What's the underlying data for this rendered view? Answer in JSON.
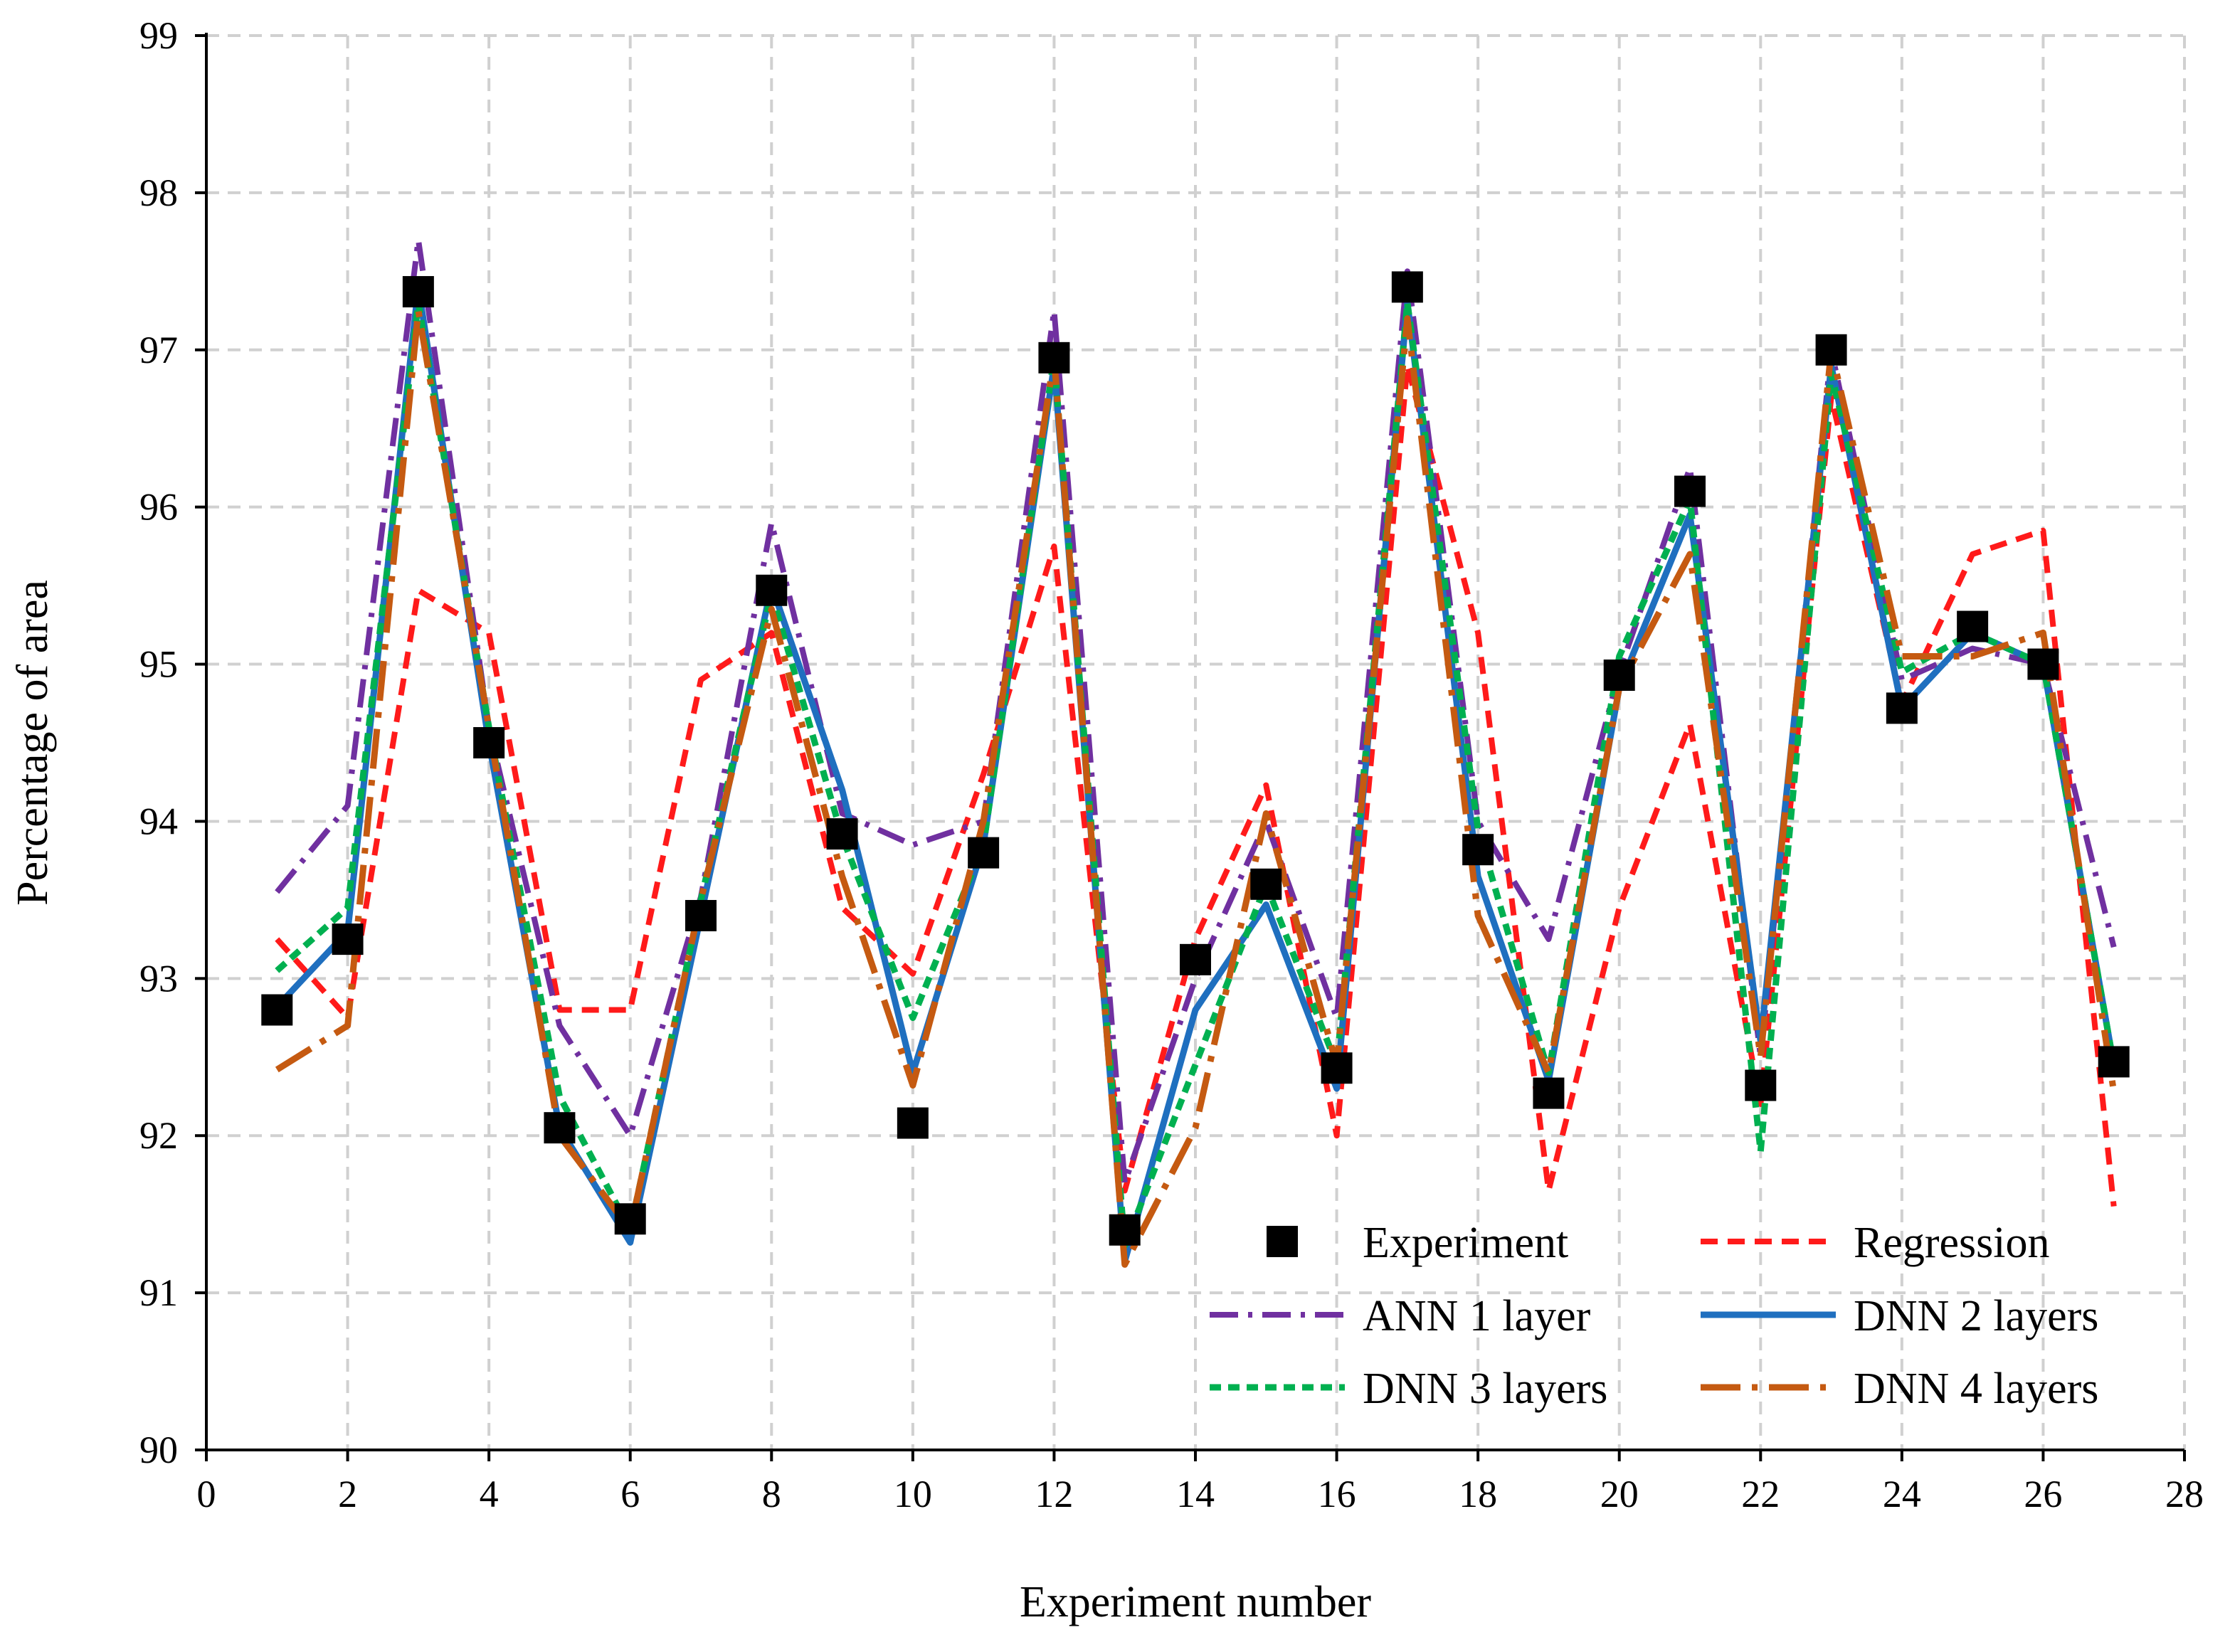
{
  "chart_data": {
    "type": "line",
    "title": "",
    "xlabel": "Experiment number",
    "ylabel": "Percentage of area",
    "xlim": [
      0,
      28
    ],
    "ylim": [
      90,
      99
    ],
    "xticks": [
      "0",
      "2",
      "4",
      "6",
      "8",
      "10",
      "12",
      "14",
      "16",
      "18",
      "20",
      "22",
      "24",
      "26",
      "28"
    ],
    "yticks": [
      "90",
      "91",
      "92",
      "93",
      "94",
      "95",
      "96",
      "97",
      "98",
      "99"
    ],
    "grid": true,
    "legend_position": "bottom-right",
    "x": [
      1,
      2,
      3,
      4,
      5,
      6,
      7,
      8,
      9,
      10,
      11,
      12,
      13,
      14,
      15,
      16,
      17,
      18,
      19,
      20,
      21,
      22,
      23,
      24,
      25,
      26,
      27
    ],
    "series": [
      {
        "name": "Experiment",
        "style": "marker-square",
        "color": "#000000",
        "values": [
          92.8,
          93.25,
          97.37,
          94.5,
          92.05,
          91.47,
          93.4,
          95.47,
          93.92,
          92.08,
          93.8,
          96.95,
          91.4,
          93.12,
          93.6,
          92.43,
          97.4,
          93.82,
          92.27,
          94.93,
          96.1,
          92.32,
          97.0,
          94.72,
          95.24,
          95.0,
          92.47
        ]
      },
      {
        "name": "Regression",
        "style": "dashed",
        "color": "#ff1a1a",
        "values": [
          93.25,
          92.75,
          95.47,
          95.2,
          92.8,
          92.8,
          94.9,
          95.2,
          93.45,
          93.03,
          94.3,
          95.75,
          91.65,
          93.25,
          94.23,
          92.0,
          96.9,
          95.2,
          91.65,
          93.45,
          94.62,
          92.2,
          96.7,
          94.75,
          95.7,
          95.85,
          91.55
        ]
      },
      {
        "name": "ANN 1 layer",
        "style": "dash-dot",
        "color": "#7030a0",
        "values": [
          93.55,
          94.1,
          97.7,
          94.6,
          92.7,
          92.0,
          93.52,
          95.9,
          94.05,
          93.85,
          94.0,
          97.25,
          91.7,
          93.0,
          94.0,
          92.75,
          97.5,
          94.0,
          93.25,
          94.95,
          96.25,
          92.5,
          97.0,
          94.9,
          95.1,
          95.0,
          93.2
        ]
      },
      {
        "name": "DNN 2 layers",
        "style": "solid",
        "color": "#1f6fbf",
        "values": [
          92.82,
          93.3,
          97.4,
          94.5,
          92.05,
          91.32,
          93.4,
          95.5,
          94.2,
          92.4,
          93.85,
          96.9,
          91.2,
          92.8,
          93.47,
          92.3,
          97.3,
          93.65,
          92.35,
          94.85,
          95.95,
          92.6,
          96.9,
          94.72,
          95.2,
          95.0,
          92.45
        ]
      },
      {
        "name": "DNN 3 layers",
        "style": "dashed-short",
        "color": "#00b050",
        "values": [
          93.05,
          93.45,
          97.3,
          94.6,
          92.25,
          91.4,
          93.5,
          95.45,
          93.9,
          92.75,
          93.85,
          96.95,
          91.3,
          92.45,
          93.6,
          92.45,
          97.3,
          93.95,
          92.4,
          95.05,
          96.05,
          91.9,
          96.85,
          94.95,
          95.2,
          95.0,
          92.45
        ]
      },
      {
        "name": "DNN 4 layers",
        "style": "long-dash-dot",
        "color": "#c55a11",
        "values": [
          92.42,
          92.7,
          97.25,
          94.6,
          92.0,
          91.4,
          93.5,
          95.35,
          93.65,
          92.32,
          94.0,
          96.95,
          91.18,
          92.05,
          94.05,
          92.45,
          97.2,
          93.4,
          92.4,
          94.85,
          95.7,
          92.5,
          97.0,
          95.05,
          95.05,
          95.2,
          92.28
        ]
      }
    ]
  }
}
